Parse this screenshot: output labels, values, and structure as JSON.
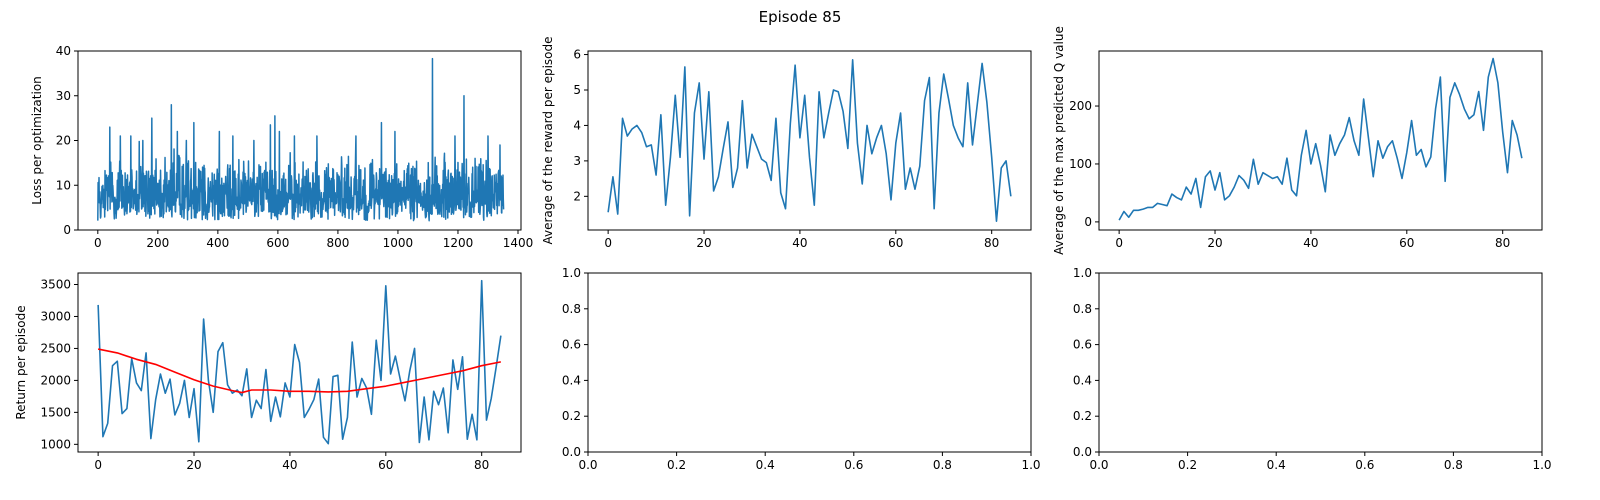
{
  "figure": {
    "title": "Episode 85"
  },
  "colors": {
    "line": "#1f77b4",
    "moving_average": "#ff0000",
    "axis": "#000000"
  },
  "chart_data": [
    {
      "id": "loss",
      "type": "line",
      "title": "",
      "xlabel": "",
      "ylabel": "Loss per optimization",
      "xlim": [
        -66,
        1410
      ],
      "ylim": [
        0,
        40
      ],
      "xticks": [
        0,
        200,
        400,
        600,
        800,
        1000,
        1200,
        1400
      ],
      "yticks": [
        0,
        10,
        20,
        30,
        40
      ],
      "grid": false,
      "n_points": 1353,
      "series": [
        {
          "values_summary": "dense noisy signal, mostly between about 2 and 16",
          "spikes": [
            [
              40,
              23
            ],
            [
              75,
              21
            ],
            [
              110,
              21
            ],
            [
              150,
              20
            ],
            [
              180,
              25
            ],
            [
              245,
              28
            ],
            [
              265,
              22
            ],
            [
              295,
              20
            ],
            [
              320,
              24
            ],
            [
              405,
              22
            ],
            [
              450,
              21
            ],
            [
              520,
              20
            ],
            [
              575,
              23.5
            ],
            [
              590,
              25.5
            ],
            [
              605,
              22
            ],
            [
              655,
              21
            ],
            [
              730,
              21
            ],
            [
              860,
              21
            ],
            [
              945,
              24
            ],
            [
              990,
              22
            ],
            [
              1115,
              38.3
            ],
            [
              1190,
              21
            ],
            [
              1220,
              30
            ],
            [
              1300,
              21
            ],
            [
              1340,
              19
            ]
          ]
        }
      ]
    },
    {
      "id": "avg-reward",
      "type": "line",
      "title": "",
      "xlabel": "",
      "ylabel": "Average of the reward per episode",
      "xlim": [
        -4.2,
        88.2
      ],
      "ylim": [
        1.05,
        6.1
      ],
      "xticks": [
        0,
        20,
        40,
        60,
        80
      ],
      "yticks": [
        2,
        3,
        4,
        5,
        6
      ],
      "grid": false,
      "series": [
        {
          "x": [
            0,
            1,
            2,
            3,
            4,
            5,
            6,
            7,
            8,
            9,
            10,
            11,
            12,
            13,
            14,
            15,
            16,
            17,
            18,
            19,
            20,
            21,
            22,
            23,
            24,
            25,
            26,
            27,
            28,
            29,
            30,
            31,
            32,
            33,
            34,
            35,
            36,
            37,
            38,
            39,
            40,
            41,
            42,
            43,
            44,
            45,
            46,
            47,
            48,
            49,
            50,
            51,
            52,
            53,
            54,
            55,
            56,
            57,
            58,
            59,
            60,
            61,
            62,
            63,
            64,
            65,
            66,
            67,
            68,
            69,
            70,
            71,
            72,
            73,
            74,
            75,
            76,
            77,
            78,
            79,
            80,
            81,
            82,
            83,
            84
          ],
          "values": [
            1.55,
            2.55,
            1.5,
            4.2,
            3.7,
            3.9,
            4.0,
            3.8,
            3.4,
            3.45,
            2.6,
            4.3,
            1.75,
            3.1,
            4.85,
            3.1,
            5.65,
            1.45,
            4.35,
            5.2,
            3.05,
            4.95,
            2.15,
            2.55,
            3.35,
            4.1,
            2.25,
            2.8,
            4.7,
            2.8,
            3.75,
            3.4,
            3.05,
            2.95,
            2.45,
            4.2,
            2.1,
            1.65,
            4.05,
            5.7,
            3.65,
            4.85,
            3.1,
            1.75,
            4.95,
            3.65,
            4.35,
            5.0,
            4.95,
            4.4,
            3.35,
            5.85,
            3.5,
            2.35,
            4.0,
            3.2,
            3.65,
            4.0,
            3.2,
            1.9,
            3.5,
            4.35,
            2.2,
            2.8,
            2.2,
            2.85,
            4.7,
            5.35,
            1.65,
            4.35,
            5.45,
            4.75,
            4.0,
            3.65,
            3.4,
            5.2,
            3.45,
            4.6,
            5.75,
            4.65,
            3.1,
            1.3,
            2.8,
            3.0,
            2.0
          ]
        }
      ]
    },
    {
      "id": "max-q",
      "type": "line",
      "title": "",
      "xlabel": "",
      "ylabel": "Average of the max predicted Q value",
      "xlim": [
        -4.2,
        88.2
      ],
      "ylim": [
        -14,
        295
      ],
      "xticks": [
        0,
        20,
        40,
        60,
        80
      ],
      "yticks": [
        0,
        100,
        200
      ],
      "grid": false,
      "series": [
        {
          "x": [
            0,
            1,
            2,
            3,
            4,
            5,
            6,
            7,
            8,
            9,
            10,
            11,
            12,
            13,
            14,
            15,
            16,
            17,
            18,
            19,
            20,
            21,
            22,
            23,
            24,
            25,
            26,
            27,
            28,
            29,
            30,
            31,
            32,
            33,
            34,
            35,
            36,
            37,
            38,
            39,
            40,
            41,
            42,
            43,
            44,
            45,
            46,
            47,
            48,
            49,
            50,
            51,
            52,
            53,
            54,
            55,
            56,
            57,
            58,
            59,
            60,
            61,
            62,
            63,
            64,
            65,
            66,
            67,
            68,
            69,
            70,
            71,
            72,
            73,
            74,
            75,
            76,
            77,
            78,
            79,
            80,
            81,
            82,
            83,
            84
          ],
          "values": [
            3,
            18,
            8,
            20,
            20,
            22,
            25,
            25,
            32,
            30,
            28,
            48,
            42,
            38,
            60,
            48,
            75,
            25,
            78,
            88,
            55,
            85,
            38,
            45,
            60,
            80,
            72,
            58,
            108,
            65,
            85,
            80,
            75,
            78,
            65,
            110,
            55,
            45,
            115,
            158,
            100,
            135,
            98,
            52,
            150,
            115,
            135,
            150,
            180,
            140,
            115,
            212,
            145,
            78,
            140,
            110,
            130,
            140,
            110,
            75,
            120,
            175,
            115,
            125,
            95,
            112,
            195,
            250,
            70,
            215,
            240,
            220,
            195,
            178,
            185,
            225,
            158,
            250,
            282,
            240,
            155,
            85,
            175,
            150,
            110
          ]
        }
      ]
    },
    {
      "id": "return",
      "type": "line",
      "title": "",
      "xlabel": "",
      "ylabel": "Return per episode",
      "xlim": [
        -4.2,
        88.2
      ],
      "ylim": [
        880,
        3680
      ],
      "xticks": [
        0,
        20,
        40,
        60,
        80
      ],
      "yticks": [
        1000,
        1500,
        2000,
        2500,
        3000,
        3500
      ],
      "grid": false,
      "series": [
        {
          "x": [
            0,
            1,
            2,
            3,
            4,
            5,
            6,
            7,
            8,
            9,
            10,
            11,
            12,
            13,
            14,
            15,
            16,
            17,
            18,
            19,
            20,
            21,
            22,
            23,
            24,
            25,
            26,
            27,
            28,
            29,
            30,
            31,
            32,
            33,
            34,
            35,
            36,
            37,
            38,
            39,
            40,
            41,
            42,
            43,
            44,
            45,
            46,
            47,
            48,
            49,
            50,
            51,
            52,
            53,
            54,
            55,
            56,
            57,
            58,
            59,
            60,
            61,
            62,
            63,
            64,
            65,
            66,
            67,
            68,
            69,
            70,
            71,
            72,
            73,
            74,
            75,
            76,
            77,
            78,
            79,
            80,
            81,
            82,
            83,
            84
          ],
          "values": [
            3180,
            1120,
            1330,
            2230,
            2300,
            1480,
            1560,
            2340,
            1960,
            1840,
            2430,
            1090,
            1700,
            2100,
            1800,
            2020,
            1460,
            1640,
            2000,
            1420,
            1870,
            1040,
            2960,
            2000,
            1500,
            2450,
            2590,
            1930,
            1800,
            1850,
            1760,
            2180,
            1420,
            1690,
            1560,
            2170,
            1360,
            1740,
            1430,
            1960,
            1740,
            2560,
            2280,
            1420,
            1550,
            1700,
            2020,
            1110,
            1010,
            2060,
            2080,
            1080,
            1420,
            2600,
            1740,
            2030,
            1880,
            1470,
            2630,
            2000,
            3480,
            2100,
            2380,
            2020,
            1680,
            2150,
            2500,
            1030,
            1740,
            1070,
            1830,
            1620,
            1880,
            1180,
            2320,
            1860,
            2370,
            1080,
            1470,
            1070,
            3560,
            1380,
            1720,
            2200,
            2700
          ]
        },
        {
          "x": [
            0,
            4,
            8,
            12,
            16,
            20,
            24,
            28,
            30,
            32,
            36,
            40,
            44,
            48,
            52,
            56,
            60,
            64,
            68,
            72,
            76,
            80,
            84
          ],
          "values": [
            2490,
            2430,
            2330,
            2250,
            2130,
            2010,
            1910,
            1840,
            1810,
            1850,
            1850,
            1830,
            1830,
            1820,
            1830,
            1870,
            1910,
            1970,
            2030,
            2090,
            2150,
            2230,
            2290
          ]
        }
      ]
    },
    {
      "id": "empty-1",
      "type": "line",
      "title": "",
      "xlabel": "",
      "ylabel": "",
      "xlim": [
        0,
        1
      ],
      "ylim": [
        0,
        1
      ],
      "xticks": [
        0.0,
        0.2,
        0.4,
        0.6,
        0.8,
        1.0
      ],
      "yticks": [
        0.0,
        0.2,
        0.4,
        0.6,
        0.8,
        1.0
      ],
      "xticklabels": [
        "0.0",
        "0.2",
        "0.4",
        "0.6",
        "0.8",
        "1.0"
      ],
      "yticklabels": [
        "0.0",
        "0.2",
        "0.4",
        "0.6",
        "0.8",
        "1.0"
      ],
      "grid": false,
      "series": []
    },
    {
      "id": "empty-2",
      "type": "line",
      "title": "",
      "xlabel": "",
      "ylabel": "",
      "xlim": [
        0,
        1
      ],
      "ylim": [
        0,
        1
      ],
      "xticks": [
        0.0,
        0.2,
        0.4,
        0.6,
        0.8,
        1.0
      ],
      "yticks": [
        0.0,
        0.2,
        0.4,
        0.6,
        0.8,
        1.0
      ],
      "xticklabels": [
        "0.0",
        "0.2",
        "0.4",
        "0.6",
        "0.8",
        "1.0"
      ],
      "yticklabels": [
        "0.0",
        "0.2",
        "0.4",
        "0.6",
        "0.8",
        "1.0"
      ],
      "grid": false,
      "series": []
    }
  ]
}
